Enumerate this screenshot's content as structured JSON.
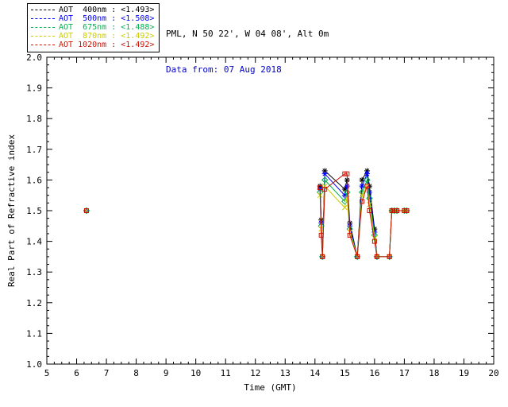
{
  "header": {
    "line1": "PML, N 50 22', W 04 08', Alt 0m",
    "line2": "Data from: 07 Aug 2018",
    "line2_color": "#0000cc"
  },
  "legend": {
    "entries": [
      {
        "label": "AOT  400nm : <1.493>",
        "color": "#000000"
      },
      {
        "label": "AOT  500nm : <1.508>",
        "color": "#0000ff"
      },
      {
        "label": "AOT  675nm : <1.488>",
        "color": "#00b050"
      },
      {
        "label": "AOT  870nm : <1.492>",
        "color": "#cccc00"
      },
      {
        "label": "AOT 1020nm : <1.492>",
        "color": "#cc1100"
      }
    ]
  },
  "chart_data": {
    "type": "line",
    "title": "",
    "xlabel": "Time (GMT)",
    "ylabel": "Real Part of Refractive index",
    "xlim": [
      5,
      20
    ],
    "ylim": [
      1.0,
      2.0
    ],
    "x_ticks": [
      5,
      6,
      7,
      8,
      9,
      10,
      11,
      12,
      13,
      14,
      15,
      16,
      17,
      18,
      19,
      20
    ],
    "y_ticks": [
      1.0,
      1.1,
      1.2,
      1.3,
      1.4,
      1.5,
      1.6,
      1.7,
      1.8,
      1.9,
      2.0
    ],
    "grid": false,
    "legend_position": "top-left",
    "isolated_point": [
      6.33,
      1.5
    ],
    "x": [
      14.17,
      14.21,
      14.25,
      14.33,
      15.0,
      15.08,
      15.17,
      15.42,
      15.58,
      15.75,
      15.83,
      16.0,
      16.08,
      16.5,
      16.58,
      16.67,
      16.75,
      17.0,
      17.08
    ],
    "series": [
      {
        "name": "AOT 400nm",
        "retrieved_value": "<1.493>",
        "color": "#000000",
        "marker": "asterisk",
        "values": [
          1.58,
          1.47,
          1.35,
          1.63,
          1.57,
          1.6,
          1.46,
          1.35,
          1.6,
          1.63,
          1.58,
          1.44,
          1.35,
          1.35,
          1.5,
          1.5,
          1.5,
          1.5,
          1.5
        ]
      },
      {
        "name": "AOT 500nm",
        "retrieved_value": "<1.508>",
        "color": "#0000ff",
        "marker": "asterisk",
        "values": [
          1.57,
          1.46,
          1.35,
          1.62,
          1.55,
          1.58,
          1.45,
          1.35,
          1.58,
          1.62,
          1.56,
          1.43,
          1.35,
          1.35,
          1.5,
          1.5,
          1.5,
          1.5,
          1.5
        ]
      },
      {
        "name": "AOT 675nm",
        "retrieved_value": "<1.488>",
        "color": "#00b050",
        "marker": "diamond",
        "values": [
          1.56,
          1.45,
          1.35,
          1.6,
          1.53,
          1.56,
          1.44,
          1.35,
          1.56,
          1.6,
          1.54,
          1.42,
          1.35,
          1.35,
          1.5,
          1.5,
          1.5,
          1.5,
          1.5
        ]
      },
      {
        "name": "AOT 870nm",
        "retrieved_value": "<1.492>",
        "color": "#cccc00",
        "marker": "x",
        "values": [
          1.55,
          1.44,
          1.35,
          1.58,
          1.51,
          1.54,
          1.43,
          1.35,
          1.55,
          1.58,
          1.52,
          1.41,
          1.35,
          1.35,
          1.5,
          1.5,
          1.5,
          1.5,
          1.5
        ]
      },
      {
        "name": "AOT 1020nm",
        "retrieved_value": "<1.492>",
        "color": "#cc1100",
        "marker": "square",
        "values": [
          1.575,
          1.42,
          1.35,
          1.57,
          1.62,
          1.62,
          1.42,
          1.35,
          1.53,
          1.58,
          1.5,
          1.4,
          1.35,
          1.35,
          1.5,
          1.5,
          1.5,
          1.5,
          1.5
        ]
      }
    ]
  }
}
